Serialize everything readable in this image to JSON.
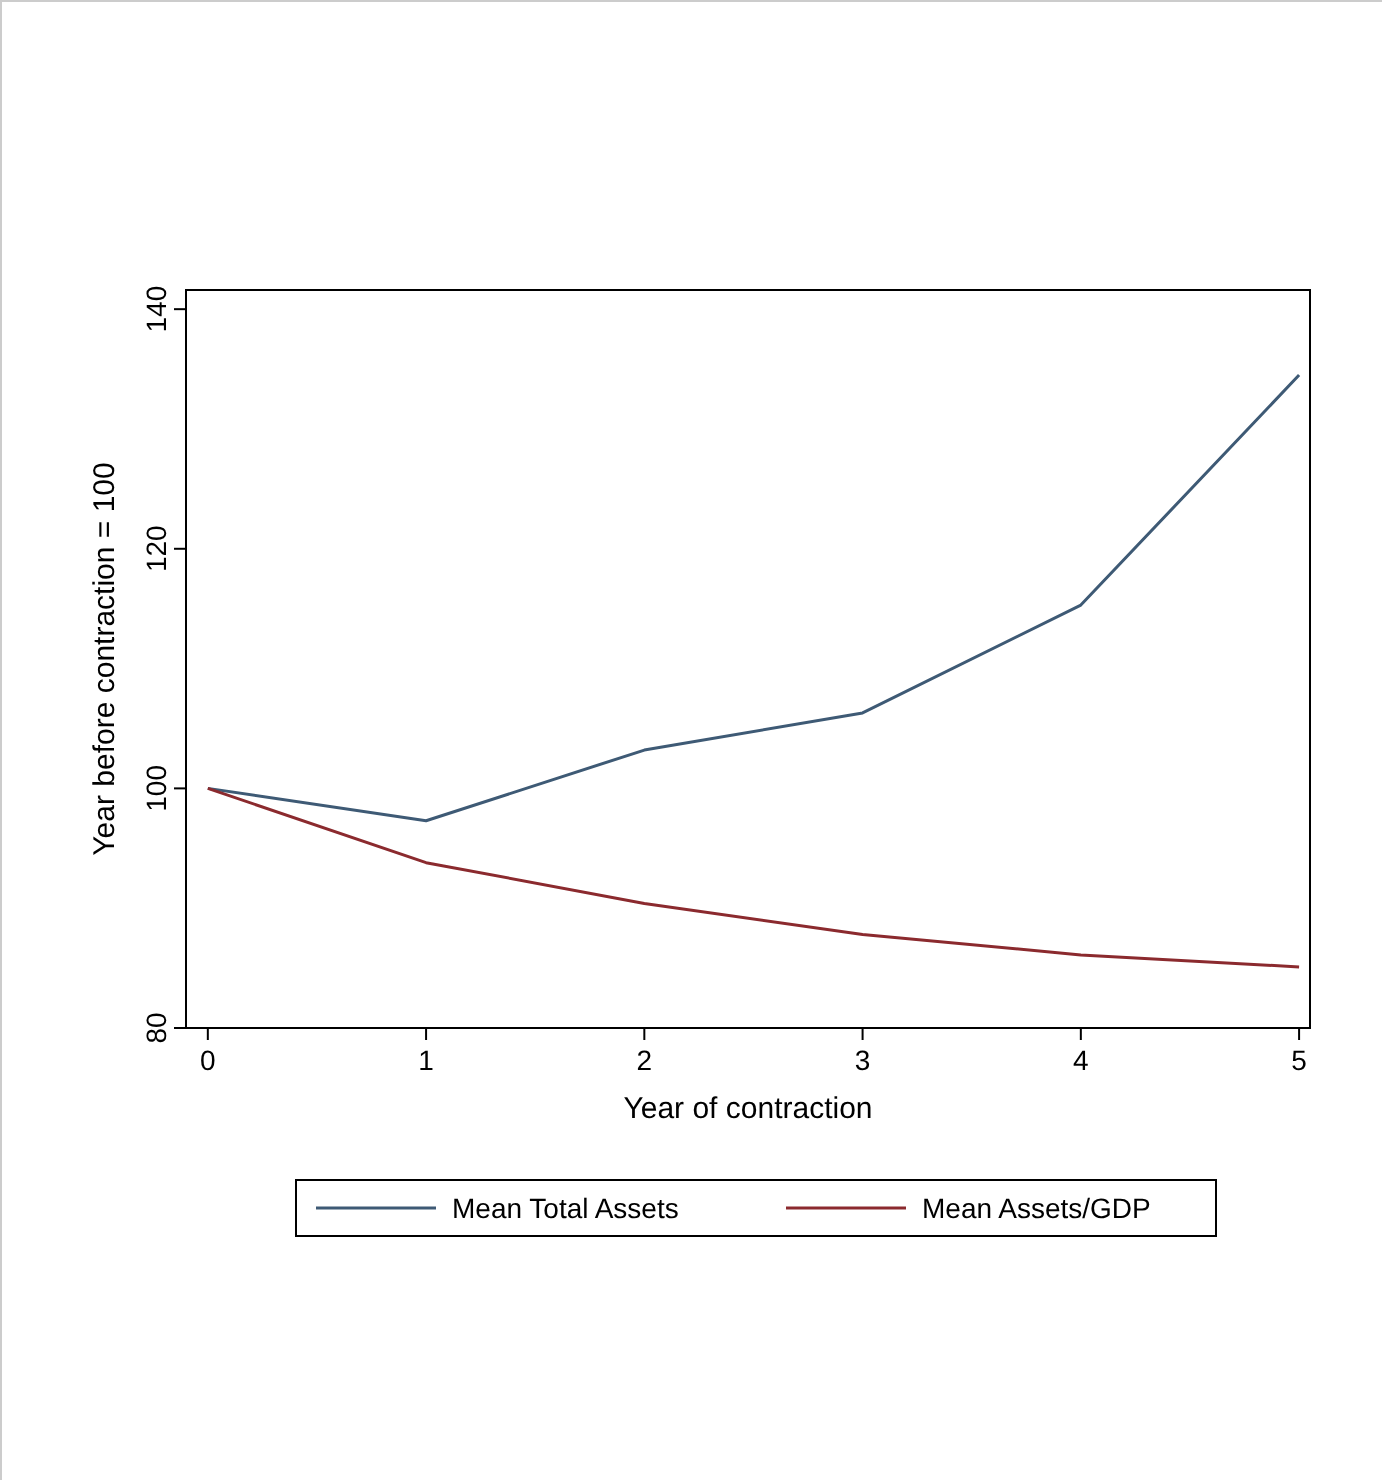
{
  "chart_data": {
    "type": "line",
    "xlabel": "Year of contraction",
    "ylabel": "Year before contraction = 100",
    "x": [
      0,
      1,
      2,
      3,
      4,
      5
    ],
    "series": [
      {
        "name": "Mean Total Assets",
        "color": "#3e5a75",
        "values": [
          100,
          97.3,
          103.2,
          106.3,
          115.3,
          134.5
        ]
      },
      {
        "name": "Mean Assets/GDP",
        "color": "#8b2a2e",
        "values": [
          100,
          93.8,
          90.4,
          87.8,
          86.1,
          85.1
        ]
      }
    ],
    "xlim": [
      -0.1,
      5.05
    ],
    "ylim": [
      80,
      141.6
    ],
    "xticks": [
      0,
      1,
      2,
      3,
      4,
      5
    ],
    "yticks": [
      80,
      100,
      120,
      140
    ],
    "legend": "bottom",
    "grid": false,
    "marker": "none",
    "line_style": "solid"
  }
}
